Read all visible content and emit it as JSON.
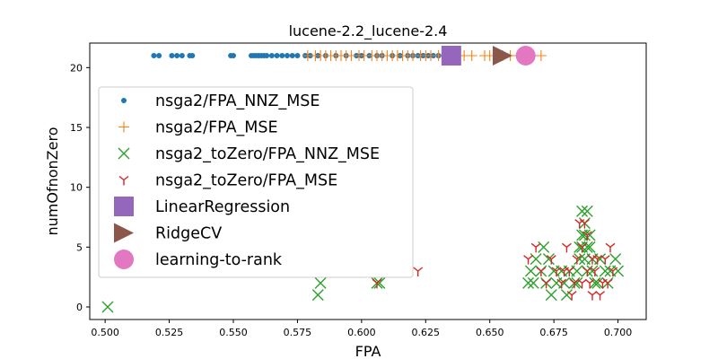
{
  "chart_data": {
    "type": "scatter",
    "title": "lucene-2.2_lucene-2.4",
    "xlabel": "FPA",
    "ylabel": "numOfnonZero",
    "xlim": [
      0.494,
      0.711
    ],
    "ylim": [
      -1.05,
      22.05
    ],
    "xticks": [
      "0.500",
      "0.525",
      "0.550",
      "0.575",
      "0.600",
      "0.625",
      "0.650",
      "0.675",
      "0.700"
    ],
    "yticks": [
      "0",
      "5",
      "10",
      "15",
      "20"
    ],
    "grid": false,
    "legend_position": "upper-left",
    "series": [
      {
        "name": "nsga2/FPA_NNZ_MSE",
        "marker": "circle",
        "color": "#1f77b4",
        "x": [
          0.519,
          0.521,
          0.526,
          0.528,
          0.53,
          0.533,
          0.534,
          0.549,
          0.55,
          0.557,
          0.558,
          0.559,
          0.56,
          0.561,
          0.562,
          0.563,
          0.565,
          0.567,
          0.569,
          0.571,
          0.573,
          0.575,
          0.578,
          0.58,
          0.583,
          0.586,
          0.59,
          0.594,
          0.598,
          0.6,
          0.603,
          0.606,
          0.608,
          0.612,
          0.615,
          0.618,
          0.62,
          0.622,
          0.624,
          0.626,
          0.628,
          0.63,
          0.632,
          0.636
        ],
        "y": [
          21,
          21,
          21,
          21,
          21,
          21,
          21,
          21,
          21,
          21,
          21,
          21,
          21,
          21,
          21,
          21,
          21,
          21,
          21,
          21,
          21,
          21,
          21,
          21,
          21,
          21,
          21,
          21,
          21,
          21,
          21,
          21,
          21,
          21,
          21,
          21,
          21,
          21,
          21,
          21,
          21,
          21,
          21,
          21
        ]
      },
      {
        "name": "nsga2/FPA_MSE",
        "marker": "plus",
        "color": "#ff7f0e",
        "x": [
          0.579,
          0.582,
          0.584,
          0.586,
          0.588,
          0.59,
          0.592,
          0.594,
          0.596,
          0.599,
          0.601,
          0.604,
          0.606,
          0.608,
          0.61,
          0.612,
          0.614,
          0.616,
          0.618,
          0.62,
          0.623,
          0.625,
          0.627,
          0.63,
          0.633,
          0.637,
          0.64,
          0.643,
          0.648,
          0.65,
          0.652,
          0.655,
          0.658,
          0.662,
          0.667,
          0.67
        ],
        "y": [
          21,
          21,
          21,
          21,
          21,
          21,
          21,
          21,
          21,
          21,
          21,
          21,
          21,
          21,
          21,
          21,
          21,
          21,
          21,
          21,
          21,
          21,
          21,
          21,
          21,
          21,
          21,
          21,
          21,
          21,
          21,
          21,
          21,
          21,
          21,
          21
        ]
      },
      {
        "name": "nsga2_toZero/FPA_NNZ_MSE",
        "marker": "x",
        "color": "#2ca02c",
        "x": [
          0.501,
          0.583,
          0.584,
          0.606,
          0.607,
          0.665,
          0.666,
          0.667,
          0.668,
          0.67,
          0.672,
          0.673,
          0.675,
          0.676,
          0.678,
          0.679,
          0.68,
          0.681,
          0.683,
          0.684,
          0.685,
          0.686,
          0.686,
          0.687,
          0.687,
          0.688,
          0.688,
          0.689,
          0.69,
          0.691,
          0.693,
          0.695,
          0.696,
          0.697,
          0.699,
          0.7,
          0.685,
          0.688,
          0.686,
          0.689,
          0.684,
          0.69,
          0.687,
          0.692,
          0.671,
          0.674
        ],
        "y": [
          0,
          1,
          2,
          2,
          2,
          2,
          3,
          2,
          4,
          3,
          2,
          4,
          3,
          2,
          3,
          2,
          1,
          3,
          2,
          3,
          5,
          6,
          8,
          7,
          4,
          5,
          8,
          6,
          3,
          2,
          4,
          3,
          2,
          3,
          4,
          3,
          4,
          3,
          5,
          5,
          2,
          4,
          6,
          2,
          5,
          1
        ]
      },
      {
        "name": "nsga2_toZero/FPA_MSE",
        "marker": "tri_down",
        "color": "#d62728",
        "x": [
          0.606,
          0.622,
          0.665,
          0.668,
          0.67,
          0.672,
          0.674,
          0.676,
          0.678,
          0.68,
          0.681,
          0.682,
          0.684,
          0.685,
          0.686,
          0.687,
          0.688,
          0.689,
          0.69,
          0.691,
          0.693,
          0.694,
          0.695,
          0.696,
          0.697,
          0.698,
          0.686,
          0.688,
          0.69,
          0.692,
          0.683,
          0.679
        ],
        "y": [
          2,
          3,
          4,
          5,
          3,
          2,
          4,
          3,
          2,
          5,
          3,
          1,
          4,
          7,
          5,
          7,
          3,
          2,
          4,
          3,
          1,
          2,
          4,
          2,
          5,
          3,
          2,
          6,
          1,
          4,
          2,
          3
        ]
      },
      {
        "name": "LinearRegression",
        "marker": "square",
        "color": "#9467bd",
        "x": [
          0.635
        ],
        "y": [
          21
        ]
      },
      {
        "name": "RidgeCV",
        "marker": "triangle_right",
        "color": "#8c564b",
        "x": [
          0.655
        ],
        "y": [
          21
        ]
      },
      {
        "name": "learning-to-rank",
        "marker": "big_circle",
        "color": "#e377c2",
        "x": [
          0.664
        ],
        "y": [
          21
        ]
      }
    ]
  }
}
